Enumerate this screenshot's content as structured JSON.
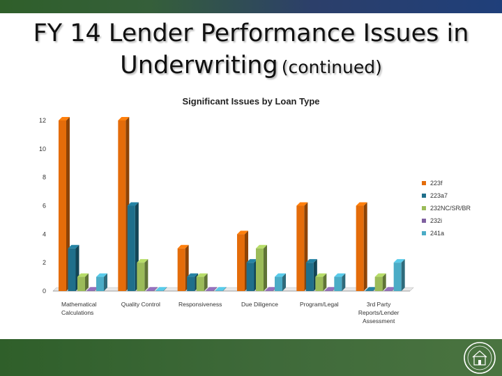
{
  "slide": {
    "title": "FY 14 Lender Performance Issues in",
    "title_line2": "Underwriting",
    "title_suffix": "(continued)"
  },
  "colors": {
    "223f": "#e46c0a",
    "223a7": "#1f6f8b",
    "232NC/SR/BR": "#9bbb59",
    "232i": "#7f60a0",
    "241a": "#4bacc6"
  },
  "icons": {
    "seal": "hud-seal-icon"
  },
  "chart_data": {
    "type": "bar",
    "style": "3d-clustered",
    "title": "Significant Issues by Loan Type",
    "xlabel": "",
    "ylabel": "",
    "ylim": [
      0,
      12
    ],
    "yticks": [
      0,
      2,
      4,
      6,
      8,
      10,
      12
    ],
    "grid": false,
    "legend_position": "right",
    "categories": [
      [
        "Mathematical",
        "Calculations"
      ],
      [
        "Quality Control"
      ],
      [
        "Responsiveness"
      ],
      [
        "Due Diligence"
      ],
      [
        "Program/Legal"
      ],
      [
        "3rd Party",
        "Reports/Lender",
        "Assessment"
      ]
    ],
    "series": [
      {
        "name": "223f",
        "values": [
          12,
          12,
          3,
          4,
          6,
          6
        ]
      },
      {
        "name": "223a7",
        "values": [
          3,
          6,
          1,
          2,
          2,
          0
        ]
      },
      {
        "name": "232NC/SR/BR",
        "values": [
          1,
          2,
          1,
          3,
          1,
          1
        ]
      },
      {
        "name": "232i",
        "values": [
          0,
          0,
          0,
          0,
          0,
          0
        ]
      },
      {
        "name": "241a",
        "values": [
          1,
          0,
          0,
          1,
          1,
          2
        ]
      }
    ]
  }
}
